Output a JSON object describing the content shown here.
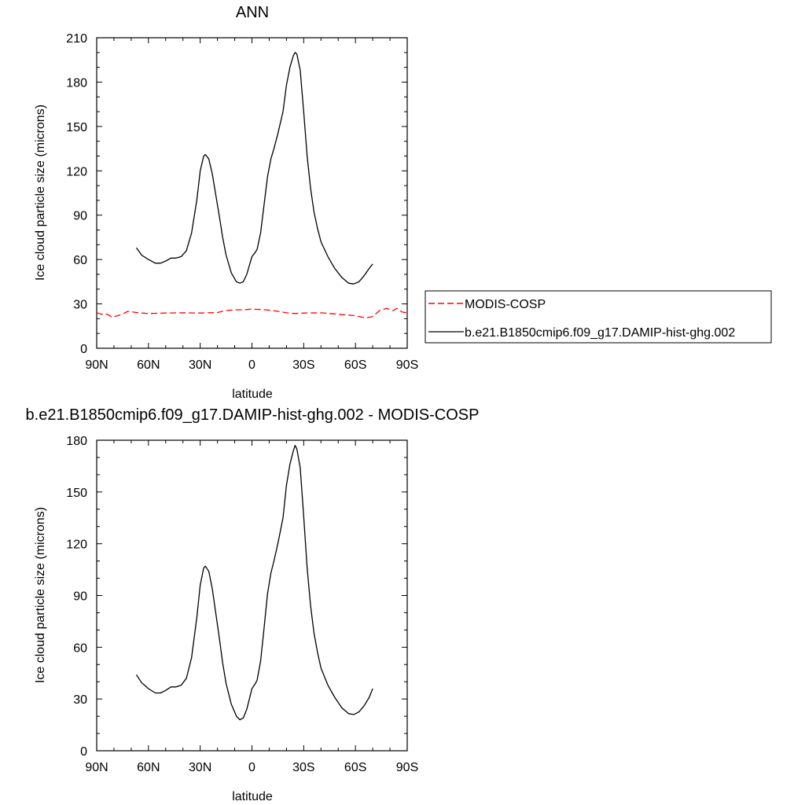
{
  "chart_data": [
    {
      "type": "line",
      "title": "ANN",
      "xlabel": "latitude",
      "ylabel": "Ice cloud particle size (microns)",
      "xlim": [
        90,
        -90
      ],
      "ylim": [
        0,
        210
      ],
      "x_ticks": [
        90,
        60,
        30,
        0,
        -30,
        -60,
        -90
      ],
      "x_tick_labels": [
        "90N",
        "60N",
        "30N",
        "0",
        "30S",
        "60S",
        "90S"
      ],
      "y_ticks": [
        0,
        30,
        60,
        90,
        120,
        150,
        180,
        210
      ],
      "grid": false,
      "legend_placement": "right",
      "series": [
        {
          "name": "MODIS-COSP",
          "color": "#ff0000",
          "dash": true,
          "points": [
            [
              90,
              24
            ],
            [
              87,
              23
            ],
            [
              84,
              23
            ],
            [
              81,
              21
            ],
            [
              78,
              22
            ],
            [
              75,
              23
            ],
            [
              72,
              25
            ],
            [
              69,
              24.5
            ],
            [
              66,
              24
            ],
            [
              60,
              23.5
            ],
            [
              50,
              23.8
            ],
            [
              40,
              24
            ],
            [
              30,
              23.8
            ],
            [
              20,
              24.2
            ],
            [
              15,
              25.5
            ],
            [
              10,
              26
            ],
            [
              5,
              26
            ],
            [
              0,
              26.5
            ],
            [
              -5,
              26.2
            ],
            [
              -10,
              25.8
            ],
            [
              -15,
              25
            ],
            [
              -20,
              24
            ],
            [
              -25,
              23.5
            ],
            [
              -30,
              23.8
            ],
            [
              -40,
              24
            ],
            [
              -50,
              23
            ],
            [
              -60,
              22
            ],
            [
              -66,
              20.5
            ],
            [
              -70,
              21.5
            ],
            [
              -74,
              25.5
            ],
            [
              -78,
              27
            ],
            [
              -82,
              25.5
            ],
            [
              -84,
              27
            ],
            [
              -87,
              24.5
            ],
            [
              -90,
              24
            ]
          ]
        },
        {
          "name": "b.e21.B1850cmip6.f09_g17.DAMIP-hist-ghg.002",
          "color": "#000000",
          "dash": false,
          "points": [
            [
              67,
              68
            ],
            [
              64,
              63
            ],
            [
              60,
              60
            ],
            [
              56,
              57.5
            ],
            [
              53,
              57.5
            ],
            [
              50,
              59
            ],
            [
              47,
              61
            ],
            [
              44,
              61
            ],
            [
              41,
              62
            ],
            [
              38,
              66
            ],
            [
              35,
              78
            ],
            [
              32,
              100
            ],
            [
              30,
              120
            ],
            [
              28,
              130
            ],
            [
              27,
              131
            ],
            [
              25,
              128
            ],
            [
              23,
              118
            ],
            [
              21,
              104
            ],
            [
              19,
              90
            ],
            [
              17,
              75
            ],
            [
              15,
              63
            ],
            [
              12,
              51
            ],
            [
              9,
              45
            ],
            [
              7,
              44
            ],
            [
              5,
              45
            ],
            [
              3,
              50
            ],
            [
              1,
              58
            ],
            [
              0,
              62
            ],
            [
              -2,
              65
            ],
            [
              -3,
              67
            ],
            [
              -5,
              78
            ],
            [
              -7,
              97
            ],
            [
              -9,
              116
            ],
            [
              -11,
              128
            ],
            [
              -13,
              136
            ],
            [
              -15,
              145
            ],
            [
              -18,
              160
            ],
            [
              -20,
              178
            ],
            [
              -22,
              190
            ],
            [
              -24,
              198
            ],
            [
              -25,
              200
            ],
            [
              -26,
              199
            ],
            [
              -28,
              188
            ],
            [
              -30,
              160
            ],
            [
              -32,
              130
            ],
            [
              -34,
              108
            ],
            [
              -36,
              92
            ],
            [
              -38,
              81
            ],
            [
              -40,
              72
            ],
            [
              -44,
              62
            ],
            [
              -48,
              54
            ],
            [
              -52,
              48
            ],
            [
              -56,
              44
            ],
            [
              -59,
              43.5
            ],
            [
              -62,
              45
            ],
            [
              -65,
              49
            ],
            [
              -68,
              54
            ],
            [
              -70,
              57
            ]
          ]
        }
      ]
    },
    {
      "type": "line",
      "title": "b.e21.B1850cmip6.f09_g17.DAMIP-hist-ghg.002 - MODIS-COSP",
      "xlabel": "latitude",
      "ylabel": "Ice cloud particle size (microns)",
      "xlim": [
        90,
        -90
      ],
      "ylim": [
        0,
        180
      ],
      "x_ticks": [
        90,
        60,
        30,
        0,
        -30,
        -60,
        -90
      ],
      "x_tick_labels": [
        "90N",
        "60N",
        "30N",
        "0",
        "30S",
        "60S",
        "90S"
      ],
      "y_ticks": [
        0,
        30,
        60,
        90,
        120,
        150,
        180
      ],
      "grid": false,
      "series": [
        {
          "color": "#000000",
          "dash": false,
          "points": [
            [
              67,
              44
            ],
            [
              64,
              39.5
            ],
            [
              60,
              36
            ],
            [
              56,
              33.5
            ],
            [
              53,
              33.5
            ],
            [
              50,
              35
            ],
            [
              47,
              37
            ],
            [
              44,
              37
            ],
            [
              41,
              38
            ],
            [
              38,
              42
            ],
            [
              35,
              54
            ],
            [
              32,
              77
            ],
            [
              30,
              96
            ],
            [
              28,
              106
            ],
            [
              27,
              107
            ],
            [
              25,
              104
            ],
            [
              23,
              94
            ],
            [
              21,
              80
            ],
            [
              19,
              66
            ],
            [
              17,
              51
            ],
            [
              15,
              39
            ],
            [
              12,
              27
            ],
            [
              9,
              20
            ],
            [
              7,
              18
            ],
            [
              5,
              19
            ],
            [
              3,
              24
            ],
            [
              1,
              32
            ],
            [
              0,
              36
            ],
            [
              -2,
              39
            ],
            [
              -3,
              41
            ],
            [
              -5,
              52
            ],
            [
              -7,
              71
            ],
            [
              -9,
              91
            ],
            [
              -11,
              103
            ],
            [
              -13,
              111
            ],
            [
              -15,
              120
            ],
            [
              -18,
              135
            ],
            [
              -20,
              154
            ],
            [
              -22,
              166
            ],
            [
              -24,
              174
            ],
            [
              -25,
              177
            ],
            [
              -26,
              175
            ],
            [
              -28,
              164
            ],
            [
              -30,
              136
            ],
            [
              -32,
              106
            ],
            [
              -34,
              84
            ],
            [
              -36,
              68
            ],
            [
              -38,
              57
            ],
            [
              -40,
              48
            ],
            [
              -44,
              38
            ],
            [
              -48,
              31
            ],
            [
              -52,
              25
            ],
            [
              -56,
              21.5
            ],
            [
              -59,
              21
            ],
            [
              -62,
              22.5
            ],
            [
              -65,
              26
            ],
            [
              -68,
              31
            ],
            [
              -70,
              36
            ]
          ]
        }
      ]
    }
  ]
}
